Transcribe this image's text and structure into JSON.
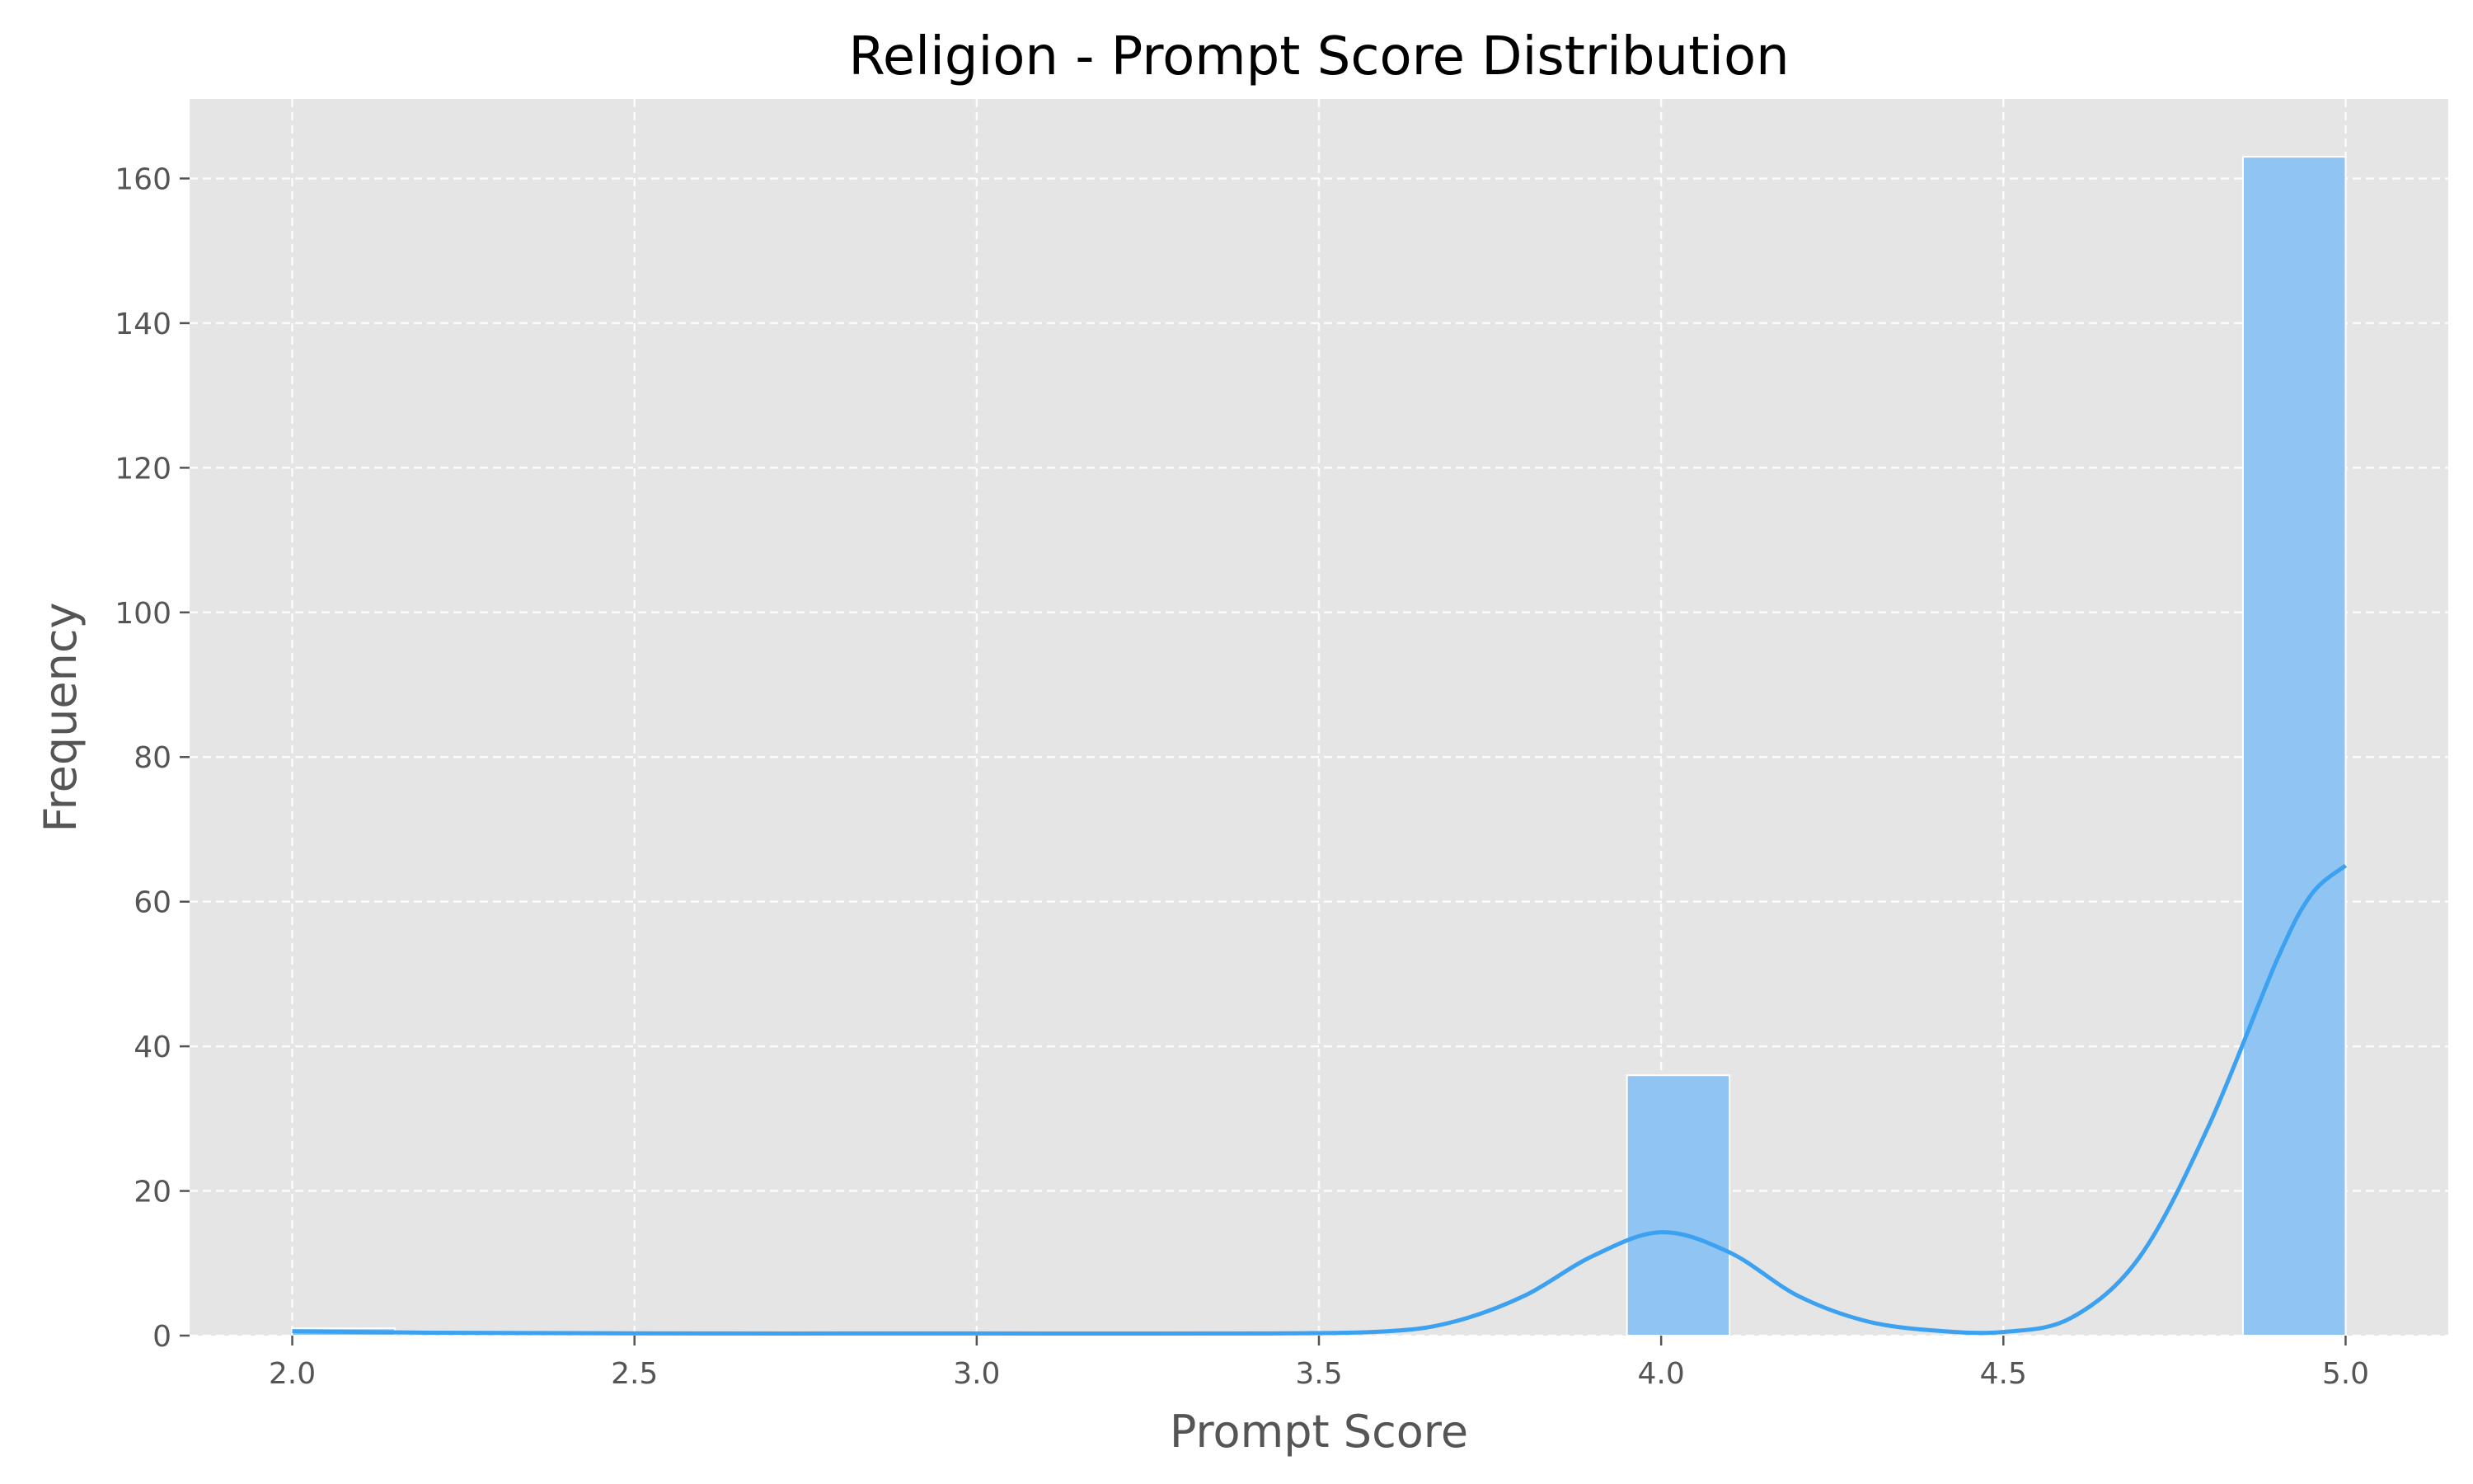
{
  "chart_data": {
    "type": "bar",
    "title": "Religion - Prompt Score Distribution",
    "xlabel": "Prompt Score",
    "ylabel": "Frequency",
    "xlim": [
      1.85,
      5.15
    ],
    "ylim": [
      0,
      171
    ],
    "xticks": [
      2.0,
      2.5,
      3.0,
      3.5,
      4.0,
      4.5,
      5.0
    ],
    "yticks": [
      0,
      20,
      40,
      60,
      80,
      100,
      120,
      140,
      160
    ],
    "xtick_labels": [
      "2.0",
      "2.5",
      "3.0",
      "3.5",
      "4.0",
      "4.5",
      "5.0"
    ],
    "ytick_labels": [
      "0",
      "20",
      "40",
      "60",
      "80",
      "100",
      "120",
      "140",
      "160"
    ],
    "grid": true,
    "legend": "none",
    "bins": [
      {
        "x0": 2.0,
        "x1": 2.15,
        "count": 1
      },
      {
        "x0": 3.95,
        "x1": 4.1,
        "count": 36
      },
      {
        "x0": 4.85,
        "x1": 5.0,
        "count": 163
      }
    ],
    "kde": {
      "x": [
        2.0,
        2.2,
        2.6,
        3.0,
        3.4,
        3.6,
        3.7,
        3.8,
        3.9,
        4.0,
        4.1,
        4.2,
        4.3,
        4.4,
        4.5,
        4.6,
        4.7,
        4.8,
        4.9,
        4.95,
        5.0
      ],
      "y": [
        0.6,
        0.4,
        0.3,
        0.3,
        0.3,
        0.6,
        2.0,
        5.5,
        11.0,
        14.3,
        11.5,
        5.5,
        2.0,
        0.7,
        0.5,
        2.5,
        11.0,
        29.0,
        52.0,
        61.0,
        65.0
      ]
    },
    "colors": {
      "bar": "#90c4f2",
      "bar_edge": "#ffffff",
      "kde": "#3ba1f0",
      "plot_bg": "#e5e5e5",
      "grid": "#ffffff"
    }
  }
}
